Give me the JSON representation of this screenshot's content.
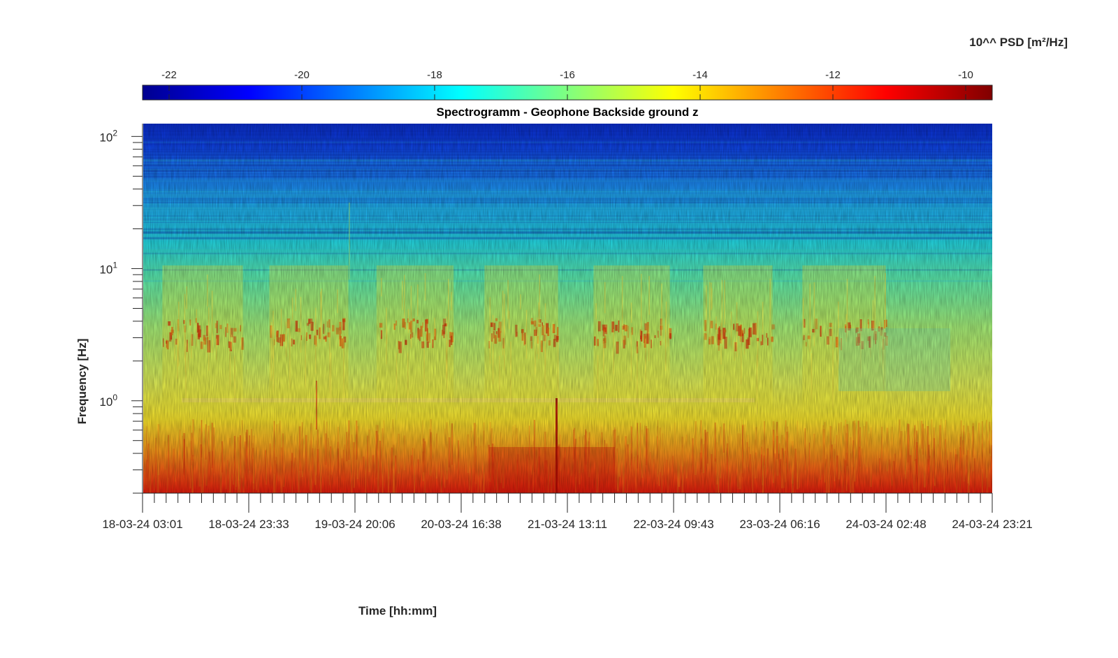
{
  "chart_data": {
    "type": "heatmap",
    "title": "Spectrogramm - Geophone Backside ground z",
    "xlabel": "Time [hh:mm]",
    "ylabel": "Frequency [Hz]",
    "colorbar_label": "10^^ PSD [m²/Hz]",
    "colormap": "jet",
    "color_range": [
      -22.4,
      -9.6
    ],
    "colorbar_ticks": [
      "-22",
      "-20",
      "-18",
      "-16",
      "-14",
      "-12",
      "-10"
    ],
    "colorbar_tick_values": [
      -22,
      -20,
      -18,
      -16,
      -14,
      -12,
      -10
    ],
    "colorbar_position": "top",
    "y_scale": "log",
    "ylim": [
      0.2,
      125
    ],
    "y_ticks": [
      {
        "base": "10",
        "exp": "0",
        "value": 1
      },
      {
        "base": "10",
        "exp": "1",
        "value": 10
      },
      {
        "base": "10",
        "exp": "2",
        "value": 100
      }
    ],
    "x_tick_labels": [
      "18-03-24 03:01",
      "18-03-24 23:33",
      "19-03-24 20:06",
      "20-03-24 16:38",
      "21-03-24 13:11",
      "22-03-24 09:43",
      "23-03-24 06:16",
      "24-03-24 02:48",
      "24-03-24 23:21"
    ],
    "x_range": [
      "18-03-24 03:01",
      "24-03-24 23:21"
    ],
    "minor_ticks_per_major": 8,
    "approx_psd_by_band": [
      {
        "freq_hz": 100,
        "log10_psd": -21.5
      },
      {
        "freq_hz": 30,
        "log10_psd": -19.5
      },
      {
        "freq_hz": 10,
        "log10_psd": -17.5
      },
      {
        "freq_hz": 3,
        "log10_psd": -15.5
      },
      {
        "freq_hz": 1,
        "log10_psd": -14.8
      },
      {
        "freq_hz": 0.5,
        "log10_psd": -13.5
      },
      {
        "freq_hz": 0.25,
        "log10_psd": -11.5
      }
    ],
    "grid": false
  }
}
